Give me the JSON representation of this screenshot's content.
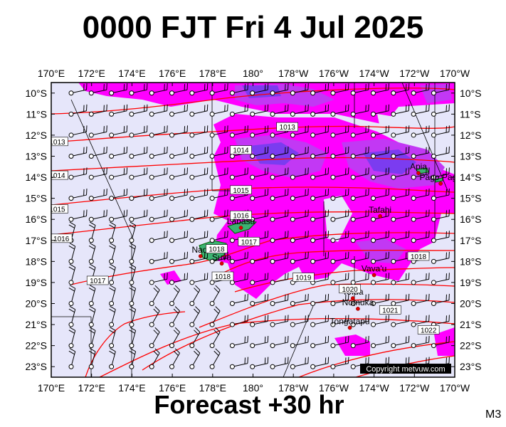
{
  "title": "0000 FJT Fri 4 Jul 2025",
  "subtitle": "Forecast +30 hr",
  "model": "M3",
  "copyright": "Copyright metvuw.com",
  "lon_ticks": [
    "170°E",
    "172°E",
    "174°E",
    "176°E",
    "178°E",
    "180°",
    "178°W",
    "176°W",
    "174°W",
    "172°W",
    "170°W"
  ],
  "lat_ticks": [
    "10°S",
    "11°S",
    "12°S",
    "13°S",
    "14°S",
    "15°S",
    "16°S",
    "17°S",
    "18°S",
    "19°S",
    "20°S",
    "21°S",
    "22°S",
    "23°S"
  ],
  "places": [
    {
      "name": "Apia",
      "lon": -171.8,
      "lat": -13.8
    },
    {
      "name": "Pago Pago",
      "lon": -170.7,
      "lat": -14.3
    },
    {
      "name": "Tafahi",
      "lon": -173.7,
      "lat": -15.85
    },
    {
      "name": "Labasa",
      "lon": 179.4,
      "lat": -16.4
    },
    {
      "name": "Nadi",
      "lon": 177.4,
      "lat": -17.75
    },
    {
      "name": "Suva",
      "lon": 178.45,
      "lat": -18.1
    },
    {
      "name": "Vava'u",
      "lon": -174.0,
      "lat": -18.65
    },
    {
      "name": "Tofua",
      "lon": -175.05,
      "lat": -19.75
    },
    {
      "name": "Nomuka",
      "lon": -174.8,
      "lat": -20.25
    },
    {
      "name": "Tongatapu",
      "lon": -175.2,
      "lat": -21.15
    }
  ],
  "isobars": [
    {
      "label": "1013",
      "lon": -178.3,
      "lat": -11.6
    },
    {
      "label": "1014",
      "lon": 179.4,
      "lat": -12.7
    },
    {
      "label": "1015",
      "lon": 179.4,
      "lat": -14.6
    },
    {
      "label": "1016",
      "lon": 179.4,
      "lat": -15.8
    },
    {
      "label": "1017",
      "lon": 179.8,
      "lat": -17.05
    },
    {
      "label": "1018",
      "lon": 178.2,
      "lat": -17.4
    },
    {
      "label": "1018",
      "lon": -171.8,
      "lat": -17.75
    },
    {
      "label": "1018",
      "lon": 178.5,
      "lat": -18.7
    },
    {
      "label": "1019",
      "lon": -177.5,
      "lat": -18.75
    },
    {
      "label": "1020",
      "lon": -175.2,
      "lat": -19.3
    },
    {
      "label": "1021",
      "lon": -173.2,
      "lat": -20.3
    },
    {
      "label": "1022",
      "lon": -171.3,
      "lat": -21.25
    },
    {
      "label": "1017",
      "lon": 172.3,
      "lat": -18.9
    },
    {
      "label": "1016",
      "lon": 170.5,
      "lat": -16.9
    },
    {
      "label": "1015",
      "lon": 170.3,
      "lat": -15.5
    },
    {
      "label": "1014",
      "lon": 170.3,
      "lat": -13.9
    },
    {
      "label": "1013",
      "lon": 170.3,
      "lat": -12.3
    }
  ],
  "colors": {
    "background_field": "#e6e6fa",
    "rain_light": "#ff00ff",
    "rain_medium": "#c238f4",
    "rain_heavy": "#7b3cf0",
    "isobar": "#ff0000",
    "land": "#3cb371"
  },
  "map_extent": {
    "lon_min": 170,
    "lon_max": -170,
    "lat_min": -23.5,
    "lat_max": -9.5
  }
}
